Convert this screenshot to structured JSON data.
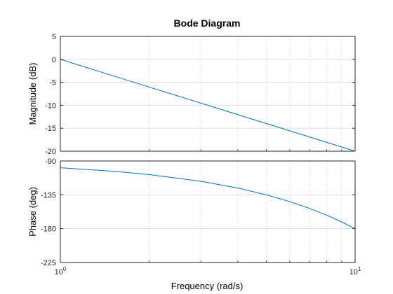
{
  "chart_data": {
    "type": "line",
    "title": "Bode Diagram",
    "xlabel": "Frequency  (rad/s)",
    "x_scale": "log",
    "xlim": [
      1,
      10
    ],
    "x_ticks": [
      {
        "value": 1,
        "base": "10",
        "exp": "0"
      },
      {
        "value": 10,
        "base": "10",
        "exp": "1"
      }
    ],
    "grid": true,
    "line_color": "#0072BD",
    "panels": [
      {
        "name": "magnitude",
        "ylabel": "Magnitude (dB)",
        "ylim": [
          -20,
          5
        ],
        "yticks": [
          5,
          0,
          -5,
          -10,
          -15,
          -20
        ],
        "series": [
          {
            "x": [
              1,
              2,
              3,
              5,
              10
            ],
            "y": [
              0,
              -6.02,
              -9.54,
              -13.98,
              -20
            ]
          }
        ]
      },
      {
        "name": "phase",
        "ylabel": "Phase (deg)",
        "ylim": [
          -225,
          -90
        ],
        "yticks": [
          -90,
          -135,
          -180,
          -225
        ],
        "series": [
          {
            "x": [
              1,
              1.5,
              2,
              3,
              4,
              5,
              6,
              7,
              8,
              9,
              10
            ],
            "y": [
              -99,
              -103.5,
              -108,
              -117,
              -126,
              -135,
              -144,
              -153,
              -162,
              -171,
              -180
            ]
          }
        ]
      }
    ]
  }
}
